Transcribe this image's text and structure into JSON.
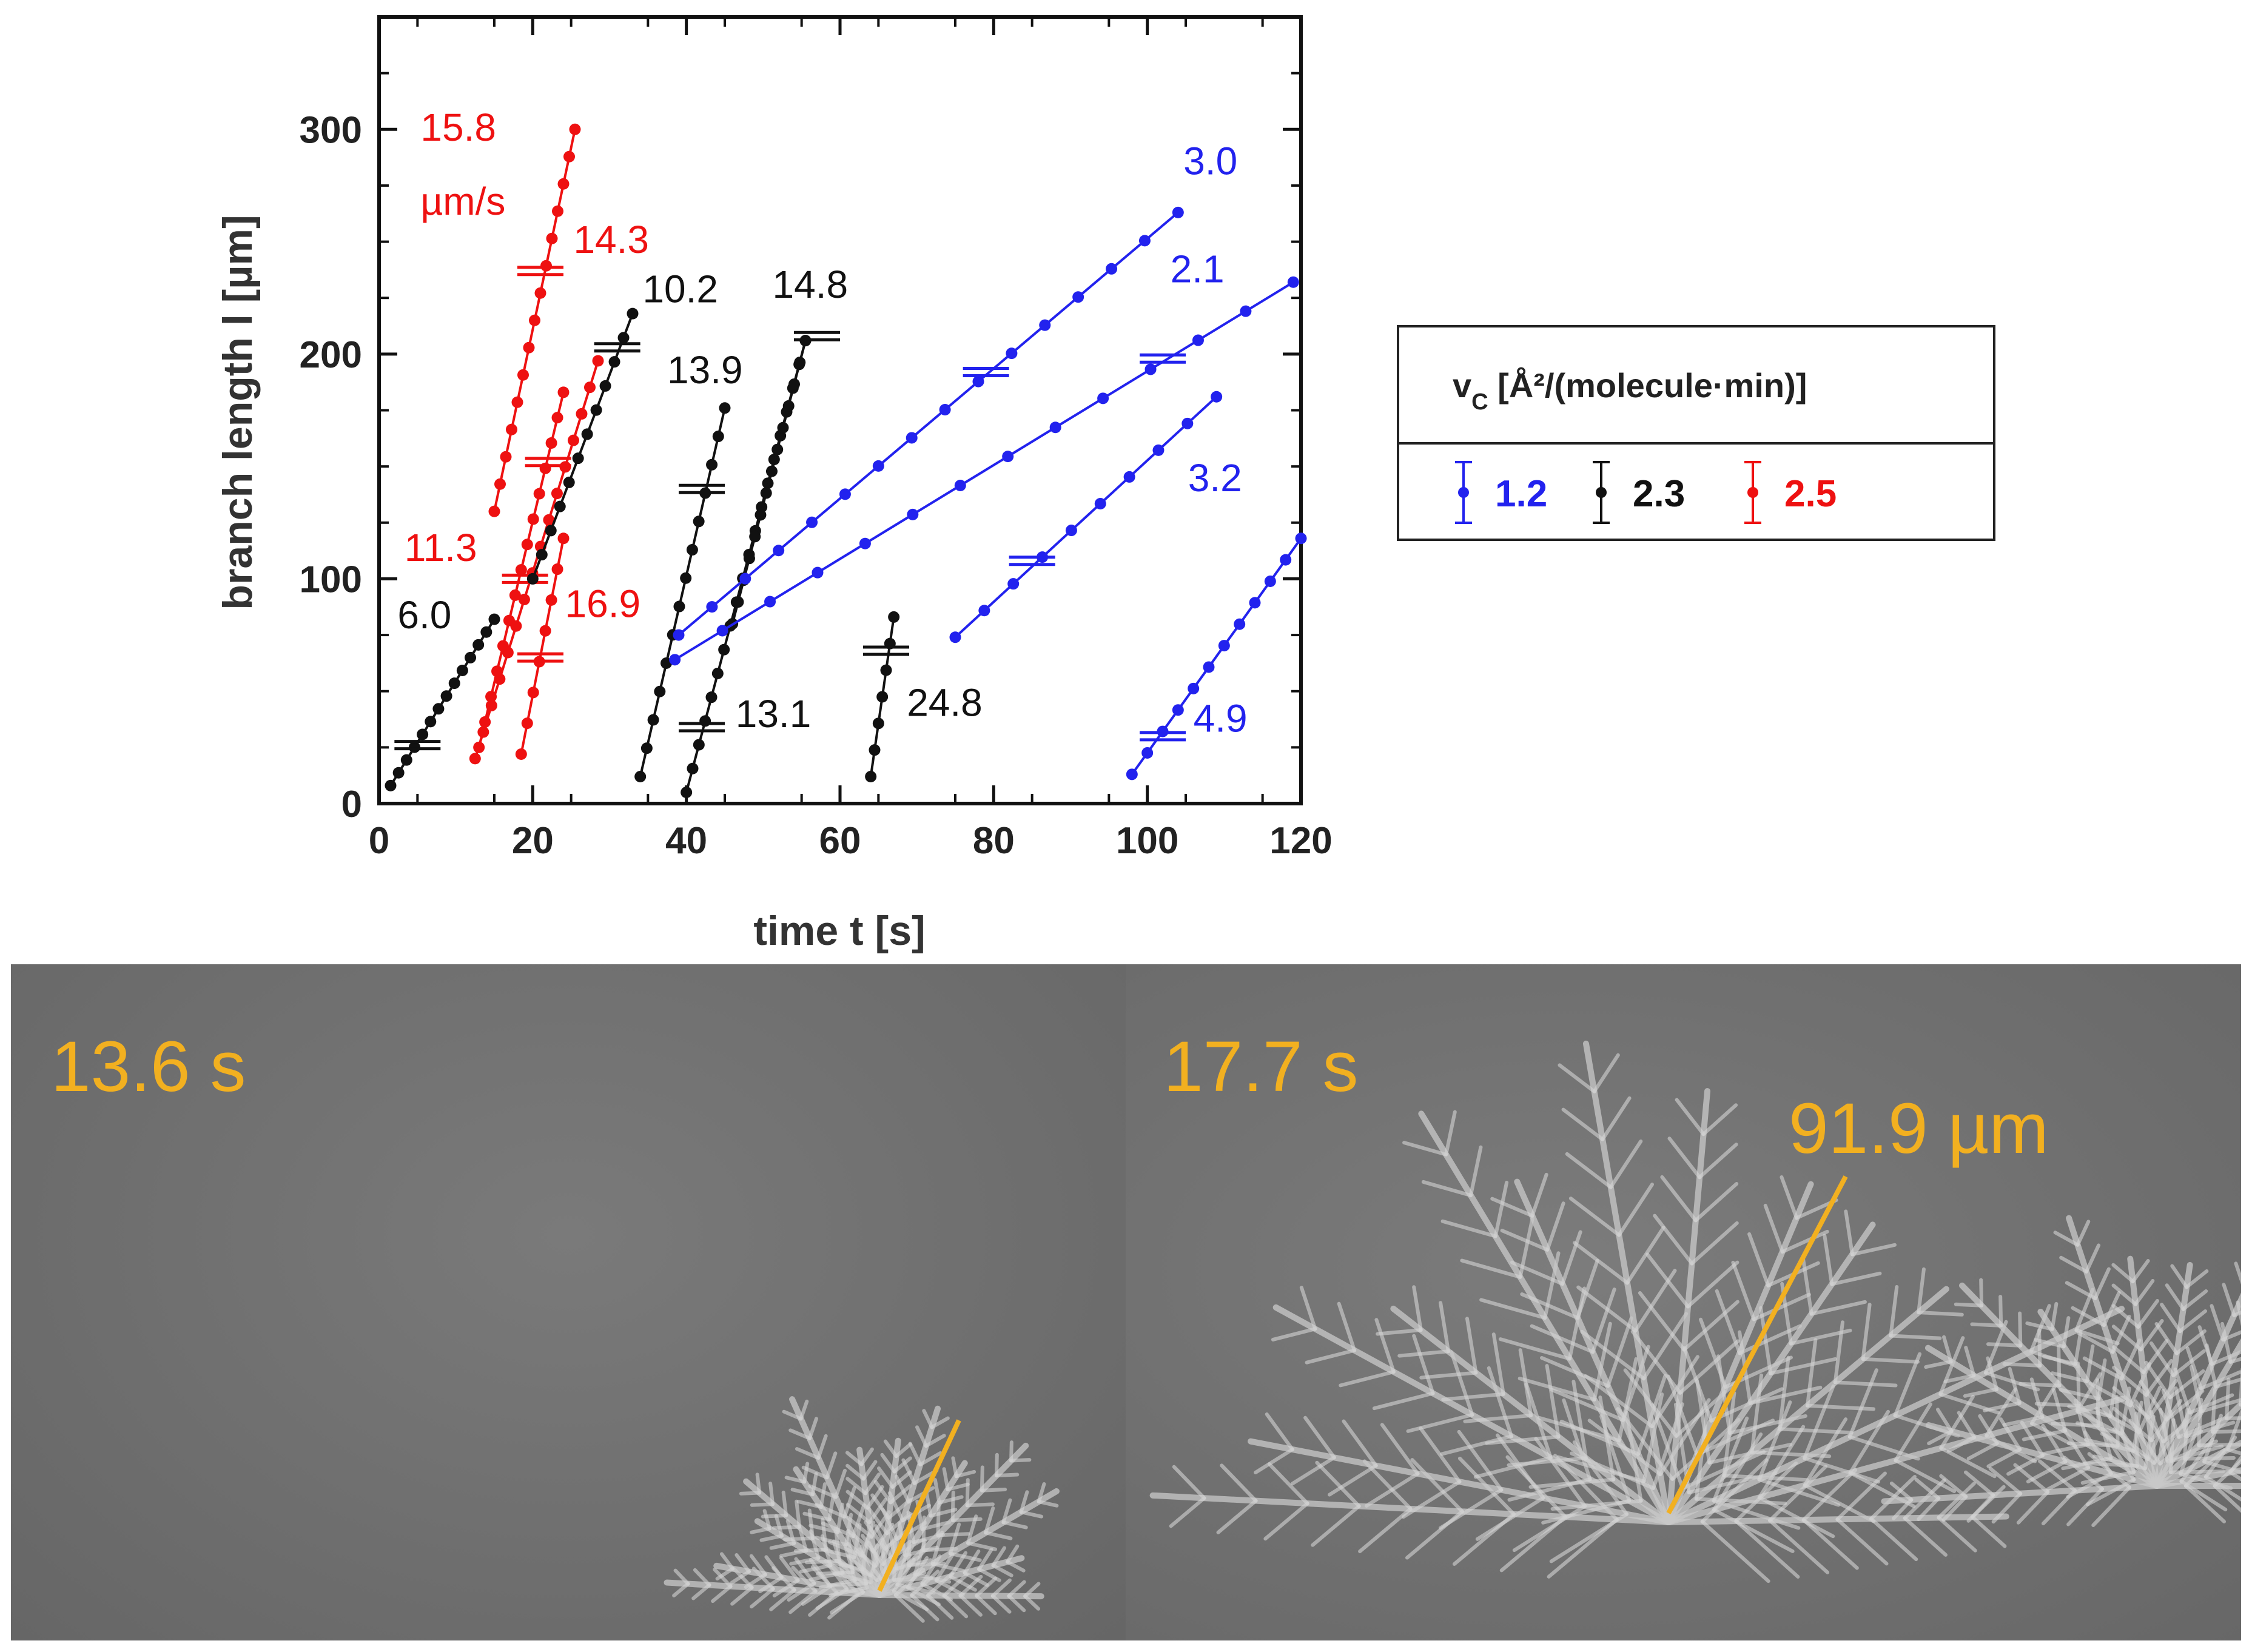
{
  "chart_data": {
    "type": "line",
    "xlabel": "time t [s]",
    "ylabel": "branch length l [µm]",
    "xlim": [
      0,
      120
    ],
    "ylim": [
      0,
      350
    ],
    "xticks": [
      "0",
      "20",
      "40",
      "60",
      "80",
      "100",
      "120"
    ],
    "yticks": [
      "0",
      "100",
      "200",
      "300"
    ],
    "grid": false,
    "legend": {
      "title": "v",
      "title_sub": "C",
      "title_rest": " [Å²/(molecule·min)]",
      "placement": "right",
      "entries": [
        {
          "label": "1.2",
          "color": "#2222ee"
        },
        {
          "label": "2.3",
          "color": "#111111"
        },
        {
          "label": "2.5",
          "color": "#ee1111"
        }
      ]
    },
    "series": [
      {
        "group": "2.5",
        "color": "#ee1111",
        "x_start": 15,
        "x_end": 25.5,
        "y_start": 130,
        "y_end": 300,
        "points": 15,
        "errorbar": {
          "x": 21,
          "y": 237
        }
      },
      {
        "group": "2.5",
        "color": "#ee1111",
        "x_start": 12.5,
        "x_end": 28.5,
        "y_start": 20,
        "y_end": 197,
        "points": 16,
        "errorbar": {
          "x": 19,
          "y": 100
        }
      },
      {
        "group": "2.5",
        "color": "#ee1111",
        "x_start": 13,
        "x_end": 24,
        "y_start": 25,
        "y_end": 183,
        "points": 15,
        "errorbar": {
          "x": 22,
          "y": 152
        }
      },
      {
        "group": "2.5",
        "color": "#ee1111",
        "x_start": 18.5,
        "x_end": 24,
        "y_start": 22,
        "y_end": 118,
        "points": 8,
        "errorbar": {
          "x": 21,
          "y": 65
        }
      },
      {
        "group": "2.3",
        "color": "#111111",
        "x_start": 1.5,
        "x_end": 15,
        "y_start": 8,
        "y_end": 82,
        "points": 14,
        "errorbar": {
          "x": 5,
          "y": 26
        }
      },
      {
        "group": "2.3",
        "color": "#111111",
        "x_start": 20,
        "x_end": 33,
        "y_start": 100,
        "y_end": 218,
        "points": 12,
        "errorbar": {
          "x": 31,
          "y": 203
        }
      },
      {
        "group": "2.3",
        "color": "#111111",
        "x_start": 34,
        "x_end": 45,
        "y_start": 12,
        "y_end": 176,
        "points": 14,
        "errorbar": {
          "x": 42,
          "y": 140
        }
      },
      {
        "group": "2.3",
        "color": "#111111",
        "x_start": 40,
        "x_end": 55.5,
        "y_start": 5,
        "y_end": 206,
        "points": 20,
        "errorbar": {
          "x": 42,
          "y": 34
        }
      },
      {
        "group": "2.3",
        "color": "#111111",
        "x_start": 46,
        "x_end": 55.5,
        "y_start": 80,
        "y_end": 206,
        "points": 14,
        "errorbar": {
          "x": 57,
          "y": 208
        }
      },
      {
        "group": "2.3",
        "color": "#111111",
        "x_start": 64,
        "x_end": 67,
        "y_start": 12,
        "y_end": 83,
        "points": 7,
        "errorbar": {
          "x": 66,
          "y": 68
        }
      },
      {
        "group": "1.2",
        "color": "#2222ee",
        "x_start": 39,
        "x_end": 104,
        "y_start": 75,
        "y_end": 263,
        "points": 16,
        "errorbar": {
          "x": 79,
          "y": 192
        }
      },
      {
        "group": "1.2",
        "color": "#2222ee",
        "x_start": 38.5,
        "x_end": 119,
        "y_start": 64,
        "y_end": 232,
        "points": 14,
        "errorbar": {
          "x": 102,
          "y": 198
        }
      },
      {
        "group": "1.2",
        "color": "#2222ee",
        "x_start": 75,
        "x_end": 109,
        "y_start": 74,
        "y_end": 181,
        "points": 10,
        "errorbar": {
          "x": 85,
          "y": 108
        }
      },
      {
        "group": "1.2",
        "color": "#2222ee",
        "x_start": 98,
        "x_end": 120,
        "y_start": 13,
        "y_end": 118,
        "points": 12,
        "errorbar": {
          "x": 102,
          "y": 30
        }
      }
    ],
    "annotations": [
      {
        "text": "15.8",
        "color": "#ee1111",
        "x": 5.4,
        "y": 295
      },
      {
        "text": "µm/s",
        "color": "#ee1111",
        "x": 5.4,
        "y": 262
      },
      {
        "text": "14.3",
        "color": "#ee1111",
        "x": 25.3,
        "y": 245
      },
      {
        "text": "11.3",
        "color": "#ee1111",
        "x": 3.3,
        "y": 108
      },
      {
        "text": "16.9",
        "color": "#ee1111",
        "x": 24.2,
        "y": 83
      },
      {
        "text": "6.0",
        "color": "#111111",
        "x": 2.4,
        "y": 78
      },
      {
        "text": "10.2",
        "color": "#111111",
        "x": 34.3,
        "y": 223
      },
      {
        "text": "13.9",
        "color": "#111111",
        "x": 37.5,
        "y": 187
      },
      {
        "text": "14.8",
        "color": "#111111",
        "x": 51.2,
        "y": 225
      },
      {
        "text": "13.1",
        "color": "#111111",
        "x": 46.4,
        "y": 34
      },
      {
        "text": "24.8",
        "color": "#111111",
        "x": 68.7,
        "y": 39
      },
      {
        "text": "3.0",
        "color": "#2222ee",
        "x": 104.7,
        "y": 280
      },
      {
        "text": "2.1",
        "color": "#2222ee",
        "x": 103.0,
        "y": 232
      },
      {
        "text": "3.2",
        "color": "#2222ee",
        "x": 105.3,
        "y": 139
      },
      {
        "text": "4.9",
        "color": "#2222ee",
        "x": 106.0,
        "y": 32
      }
    ]
  },
  "images": {
    "left": {
      "time_label": "13.6 s"
    },
    "right": {
      "time_label": "17.7 s",
      "scale_label": "91.9 µm"
    },
    "accent_color": "#f2b020"
  }
}
